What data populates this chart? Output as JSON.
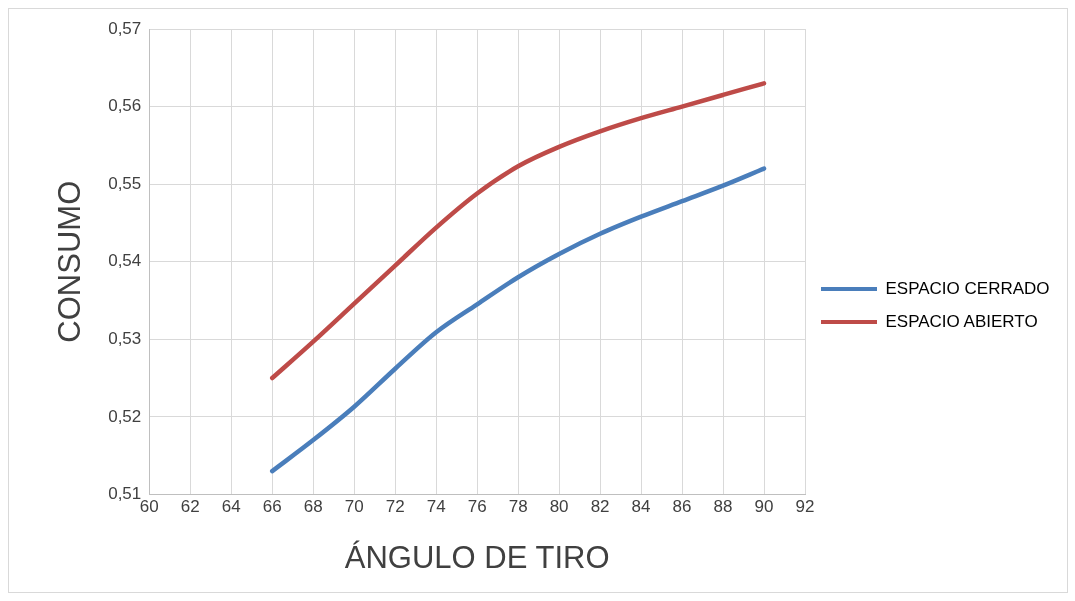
{
  "chart_data": {
    "type": "line",
    "xlabel": "ÁNGULO DE TIRO",
    "ylabel": "CONSUMO",
    "x": [
      66,
      68,
      70,
      72,
      74,
      76,
      78,
      80,
      82,
      84,
      86,
      88,
      90
    ],
    "series": [
      {
        "name": "ESPACIO CERRADO",
        "color": "#4a7ebb",
        "values": [
          0.513,
          0.517,
          0.5213,
          0.5262,
          0.5309,
          0.5345,
          0.538,
          0.541,
          0.5436,
          0.5458,
          0.5478,
          0.5498,
          0.552
        ]
      },
      {
        "name": "ESPACIO ABIERTO",
        "color": "#be4b48",
        "values": [
          0.525,
          0.5297,
          0.5346,
          0.5395,
          0.5444,
          0.5488,
          0.5523,
          0.5548,
          0.5568,
          0.5585,
          0.56,
          0.5615,
          0.563
        ]
      }
    ],
    "xlim": [
      60,
      92
    ],
    "xticks": [
      60,
      62,
      64,
      66,
      68,
      70,
      72,
      74,
      76,
      78,
      80,
      82,
      84,
      86,
      88,
      90,
      92
    ],
    "ylim": [
      0.51,
      0.57
    ],
    "yticks": [
      {
        "value": 0.51,
        "label": "0,51"
      },
      {
        "value": 0.52,
        "label": "0,52"
      },
      {
        "value": 0.53,
        "label": "0,53"
      },
      {
        "value": 0.54,
        "label": "0,54"
      },
      {
        "value": 0.55,
        "label": "0,55"
      },
      {
        "value": 0.56,
        "label": "0,56"
      },
      {
        "value": 0.57,
        "label": "0,57"
      }
    ],
    "grid": true,
    "legend": "right",
    "marker": "none",
    "line_style": "solid"
  }
}
